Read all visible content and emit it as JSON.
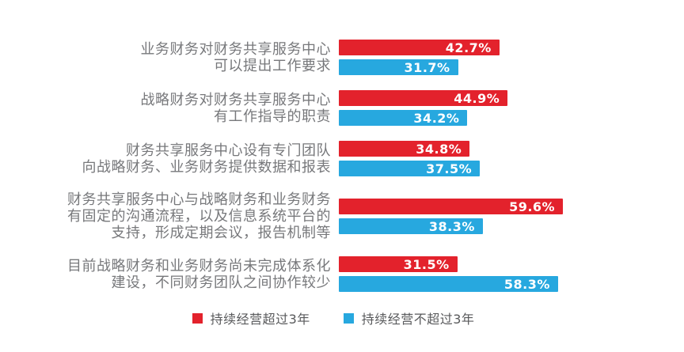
{
  "colors": {
    "series_over_3y": "#e3222c",
    "series_under_3y": "#27a8df",
    "category_label_text": "#77787b",
    "legend_text": "#58595b",
    "value_label_text": "#ffffff",
    "background": "#ffffff"
  },
  "chart_data": {
    "type": "bar",
    "orientation": "horizontal",
    "unit": "%",
    "title": "",
    "xlabel": "",
    "ylabel": "",
    "xlim": [
      0,
      91
    ],
    "grid": false,
    "legend_position": "bottom",
    "value_labels_inside_bars": true,
    "categories": [
      [
        "业务财务对财务共享服务中心",
        "可以提出工作要求"
      ],
      [
        "战略财务对财务共享服务中心",
        "有工作指导的职责"
      ],
      [
        "财务共享服务中心设有专门团队",
        "向战略财务、业务财务提供数据和报表"
      ],
      [
        "财务共享服务中心与战略财务和业务财务",
        "有固定的沟通流程，以及信息系统平台的",
        "支持，形成定期会议，报告机制等"
      ],
      [
        "目前战略财务和业务财务尚未完成体系化",
        "建设，不同财务团队之间协作较少"
      ]
    ],
    "series": [
      {
        "name": "持续经营超过3年",
        "color": "#e3222c",
        "values": [
          42.7,
          44.9,
          34.8,
          59.6,
          31.5
        ],
        "labels": [
          "42.7%",
          "44.9%",
          "34.8%",
          "59.6%",
          "31.5%"
        ]
      },
      {
        "name": "持续经营不超过3年",
        "color": "#27a8df",
        "values": [
          31.7,
          34.2,
          37.5,
          38.3,
          58.3
        ],
        "labels": [
          "31.7%",
          "34.2%",
          "37.5%",
          "38.3%",
          "58.3%"
        ]
      }
    ]
  },
  "legend": {
    "items": [
      {
        "label": "持续经营超过3年",
        "color": "#e3222c"
      },
      {
        "label": "持续经营不超过3年",
        "color": "#27a8df"
      }
    ]
  }
}
